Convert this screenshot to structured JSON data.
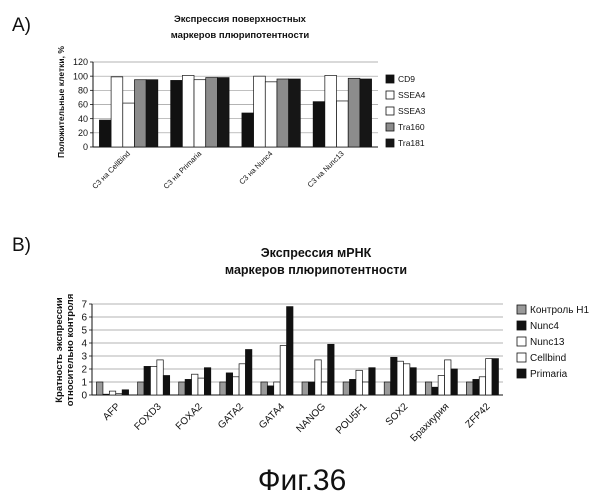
{
  "figure_caption": "Фиг.36",
  "panels": [
    {
      "letter": "A)"
    },
    {
      "letter": "B)"
    }
  ],
  "chart_data": [
    {
      "type": "bar",
      "title": "Экспрессия поверхностных\nмаркеров плюрипотентности",
      "ylabel": "Положительные клетки, %",
      "xlabel": "",
      "ylim": [
        0,
        120
      ],
      "yticks": [
        0,
        20,
        40,
        60,
        80,
        100,
        120
      ],
      "grid": true,
      "legend_position": "right",
      "categories": [
        "C3 на CellBind",
        "C3 на Primaria",
        "C3 на Nunc4",
        "C3 на Nunc13"
      ],
      "series": [
        {
          "name": "CD9",
          "color": "#111111",
          "values": [
            38,
            94,
            48,
            64
          ]
        },
        {
          "name": "SSEA4",
          "color": "#ffffff",
          "values": [
            99,
            101,
            100,
            101
          ]
        },
        {
          "name": "SSEA3",
          "color": "#ffffff",
          "values": [
            62,
            95,
            92,
            65
          ]
        },
        {
          "name": "Tra160",
          "color": "#8c8c8c",
          "values": [
            95,
            98,
            96,
            97
          ]
        },
        {
          "name": "Tra181",
          "color": "#161616",
          "values": [
            95,
            98,
            96,
            96
          ]
        }
      ]
    },
    {
      "type": "bar",
      "title": "Экспрессия мРНК\nмаркеров плюрипотентности",
      "ylabel": "Кратность экспрессии\nотносительно контроля",
      "xlabel": "",
      "ylim": [
        0,
        7
      ],
      "yticks": [
        0,
        1,
        2,
        3,
        4,
        5,
        6,
        7
      ],
      "grid": true,
      "legend_position": "right",
      "categories": [
        "AFP",
        "FOXD3",
        "FOXA2",
        "GATA2",
        "GATA4",
        "NANOG",
        "POU5F1",
        "SOX2",
        "Брахиурия",
        "ZFP42"
      ],
      "series": [
        {
          "name": "Контроль H1",
          "color": "#9a9a9a",
          "values": [
            1.0,
            1.0,
            1.0,
            1.0,
            1.0,
            1.0,
            1.0,
            1.0,
            1.0,
            1.0
          ]
        },
        {
          "name": "Nunc4",
          "color": "#111111",
          "values": [
            0.0,
            2.2,
            1.2,
            1.7,
            0.7,
            1.0,
            1.2,
            2.9,
            0.6,
            1.2
          ]
        },
        {
          "name": "Nunc13",
          "color": "#ffffff",
          "values": [
            0.3,
            2.2,
            1.6,
            1.4,
            1.0,
            2.7,
            1.9,
            2.6,
            1.5,
            1.4
          ]
        },
        {
          "name": "Cellbind",
          "color": "#ffffff",
          "values": [
            0.1,
            2.7,
            1.3,
            2.4,
            3.8,
            1.0,
            1.0,
            2.4,
            2.7,
            2.8
          ]
        },
        {
          "name": "Primaria",
          "color": "#111111",
          "values": [
            0.4,
            1.5,
            2.1,
            3.5,
            6.8,
            3.9,
            2.1,
            2.1,
            2.0,
            2.8
          ]
        }
      ]
    }
  ]
}
